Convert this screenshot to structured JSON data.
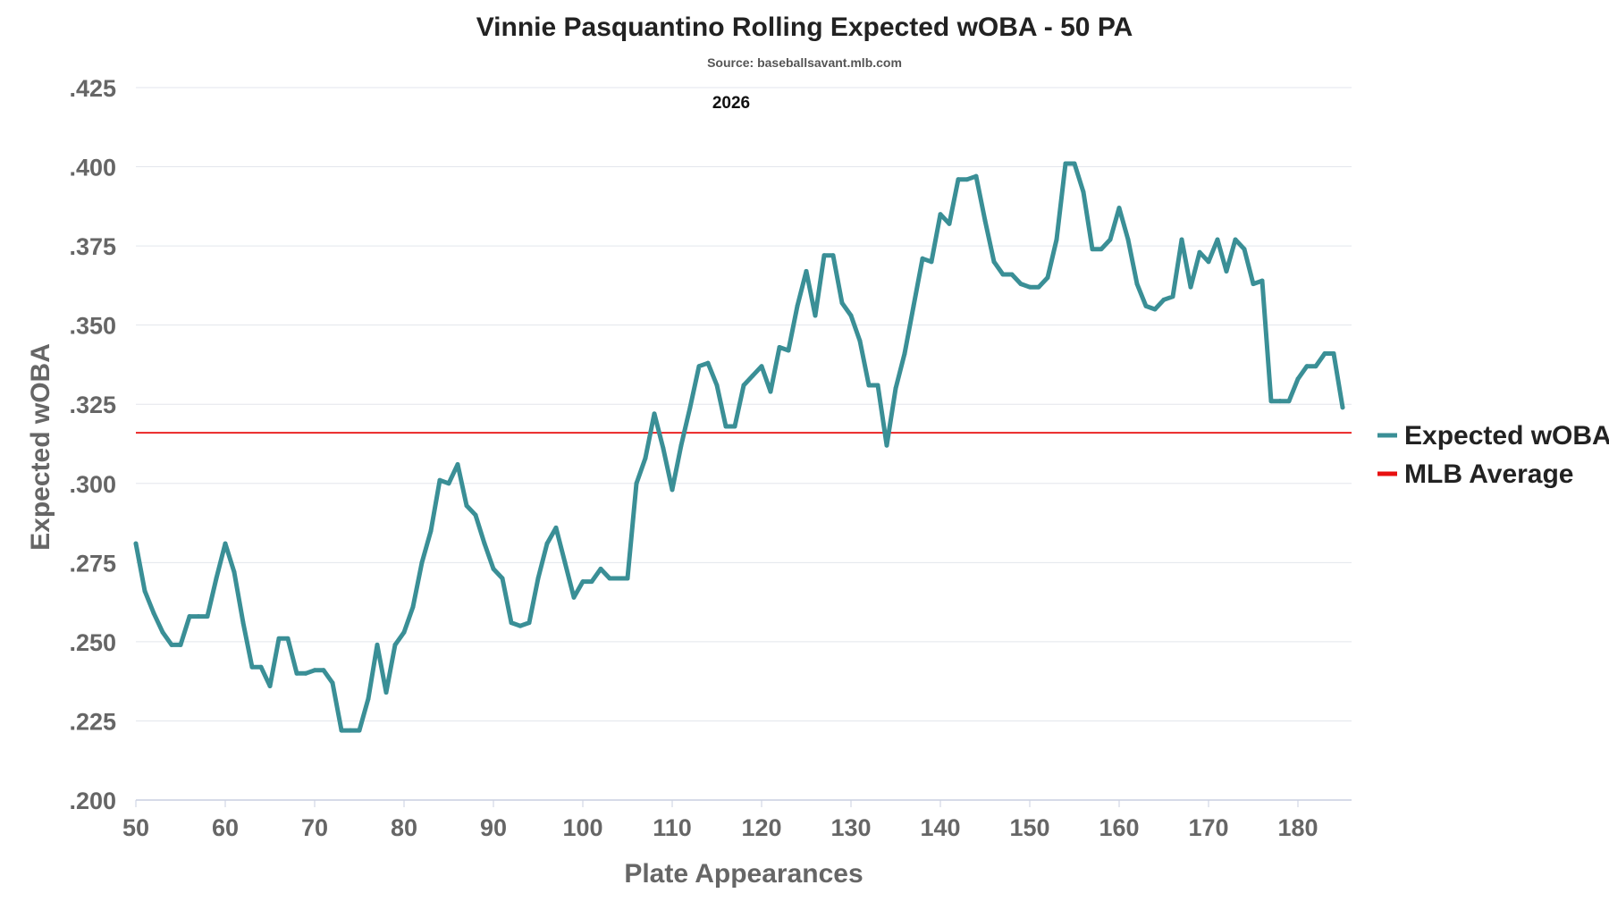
{
  "chart_data": {
    "type": "line",
    "title": "Vinnie Pasquantino Rolling Expected wOBA - 50 PA",
    "subtitle": "Source: baseballsavant.mlb.com",
    "annotation": "2026",
    "xlabel": "Plate Appearances",
    "ylabel": "Expected wOBA",
    "xlim": [
      50,
      186
    ],
    "ylim": [
      0.2,
      0.425
    ],
    "x_ticks": [
      50,
      60,
      70,
      80,
      90,
      100,
      110,
      120,
      130,
      140,
      150,
      160,
      170,
      180
    ],
    "y_ticks": [
      0.2,
      0.225,
      0.25,
      0.275,
      0.3,
      0.325,
      0.35,
      0.375,
      0.4,
      0.425
    ],
    "y_tick_labels": [
      ".200",
      ".225",
      ".250",
      ".275",
      ".300",
      ".325",
      ".350",
      ".375",
      ".400",
      ".425"
    ],
    "grid": true,
    "legend_position": "right",
    "series": [
      {
        "name": "Expected wOBA",
        "color": "#3a8f96",
        "x": [
          50,
          51,
          52,
          53,
          54,
          55,
          56,
          57,
          58,
          59,
          60,
          61,
          62,
          63,
          64,
          65,
          66,
          67,
          68,
          69,
          70,
          71,
          72,
          73,
          74,
          75,
          76,
          77,
          78,
          79,
          80,
          81,
          82,
          83,
          84,
          85,
          86,
          87,
          88,
          89,
          90,
          91,
          92,
          93,
          94,
          95,
          96,
          97,
          98,
          99,
          100,
          101,
          102,
          103,
          104,
          105,
          106,
          107,
          108,
          109,
          110,
          111,
          112,
          113,
          114,
          115,
          116,
          117,
          118,
          119,
          120,
          121,
          122,
          123,
          124,
          125,
          126,
          127,
          128,
          129,
          130,
          131,
          132,
          133,
          134,
          135,
          136,
          137,
          138,
          139,
          140,
          141,
          142,
          143,
          144,
          145,
          146,
          147,
          148,
          149,
          150,
          151,
          152,
          153,
          154,
          155,
          156,
          157,
          158,
          159,
          160,
          161,
          162,
          163,
          164,
          165,
          166,
          167,
          168,
          169,
          170,
          171,
          172,
          173,
          174,
          175,
          176,
          177,
          178,
          179,
          180,
          181,
          182,
          183,
          184,
          185
        ],
        "y": [
          0.281,
          0.266,
          0.259,
          0.253,
          0.249,
          0.249,
          0.258,
          0.258,
          0.258,
          0.27,
          0.281,
          0.272,
          0.256,
          0.242,
          0.242,
          0.236,
          0.251,
          0.251,
          0.24,
          0.24,
          0.241,
          0.241,
          0.237,
          0.222,
          0.222,
          0.222,
          0.232,
          0.249,
          0.234,
          0.249,
          0.253,
          0.261,
          0.275,
          0.285,
          0.301,
          0.3,
          0.306,
          0.293,
          0.29,
          0.281,
          0.273,
          0.27,
          0.256,
          0.255,
          0.256,
          0.27,
          0.281,
          0.286,
          0.275,
          0.264,
          0.269,
          0.269,
          0.273,
          0.27,
          0.27,
          0.27,
          0.3,
          0.308,
          0.322,
          0.311,
          0.298,
          0.312,
          0.324,
          0.337,
          0.338,
          0.331,
          0.318,
          0.318,
          0.331,
          0.334,
          0.337,
          0.329,
          0.343,
          0.342,
          0.356,
          0.367,
          0.353,
          0.372,
          0.372,
          0.357,
          0.353,
          0.345,
          0.331,
          0.331,
          0.312,
          0.33,
          0.341,
          0.356,
          0.371,
          0.37,
          0.385,
          0.382,
          0.396,
          0.396,
          0.397,
          0.383,
          0.37,
          0.366,
          0.366,
          0.363,
          0.362,
          0.362,
          0.365,
          0.377,
          0.401,
          0.401,
          0.392,
          0.374,
          0.374,
          0.377,
          0.387,
          0.377,
          0.363,
          0.356,
          0.355,
          0.358,
          0.359,
          0.377,
          0.362,
          0.373,
          0.37,
          0.377,
          0.367,
          0.377,
          0.374,
          0.363,
          0.364,
          0.326,
          0.326,
          0.326,
          0.333,
          0.337,
          0.337,
          0.341,
          0.341,
          0.324
        ]
      },
      {
        "name": "MLB Average",
        "color": "#e81010",
        "value": 0.316
      }
    ]
  }
}
